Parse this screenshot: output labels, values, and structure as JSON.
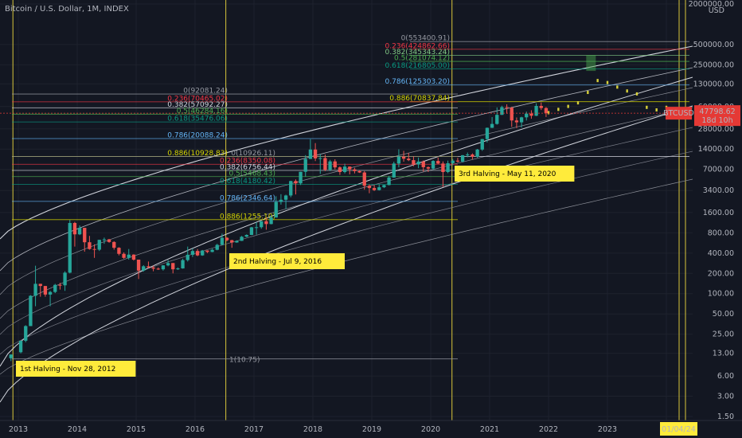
{
  "title": "Bitcoin / U.S. Dollar, 1M, INDEX",
  "currency": "USD",
  "price_tag": {
    "symbol": "BTCUSD",
    "price": "47798.62",
    "countdown": "18d 10h"
  },
  "date_tag": "01/04/24",
  "colors": {
    "bg": "#131722",
    "grid": "#1e222d",
    "up": "#26a69a",
    "down": "#ef5350",
    "halving": "#d9c63b",
    "label_bg": "#ffeb3b",
    "tag_red": "#e53935",
    "projection": "#d8d13a",
    "projection_box": "#4caf50"
  },
  "chart_data": {
    "type": "candlestick",
    "title": "Bitcoin / U.S. Dollar, 1M, INDEX",
    "y_scale": "log",
    "ylim": [
      1.5,
      2000000
    ],
    "x_ticks": [
      "2013",
      "2014",
      "2015",
      "2016",
      "2017",
      "2018",
      "2019",
      "2020",
      "2021",
      "2022",
      "2023",
      "2"
    ],
    "y_ticks": [
      "2000000.00",
      "500000.00",
      "250000.00",
      "130000.00",
      "60000.00",
      "28000.00",
      "14000.00",
      "7000.00",
      "3400.00",
      "1600.00",
      "800.00",
      "400.00",
      "200.00",
      "100.00",
      "50.00",
      "25.00",
      "13.00",
      "6.00",
      "3.00",
      "1.50"
    ],
    "halvings": [
      {
        "label": "1st Halving - Nov 28, 2012",
        "date": "2012-11-28"
      },
      {
        "label": "2nd Halving - Jul 9, 2016",
        "date": "2016-07-09"
      },
      {
        "label": "3rd Halving - May 11, 2020",
        "date": "2020-05-11"
      }
    ],
    "fib_sets": [
      {
        "levels": [
          {
            "label": "0(553400.91)",
            "value": 553400.91,
            "color": "#9598a1"
          },
          {
            "label": "0.236(424862.66)",
            "value": 424862.66,
            "color": "#f23645"
          },
          {
            "label": "0.382(345343.24)",
            "value": 345343.24,
            "color": "#81c784"
          },
          {
            "label": "0.5(281074.12)",
            "value": 281074.12,
            "color": "#4caf50"
          },
          {
            "label": "0.618(216805.00)",
            "value": 216805.0,
            "color": "#089981"
          },
          {
            "label": "0.786(125303.20)",
            "value": 125303.2,
            "color": "#64b5f6"
          },
          {
            "label": "0.886(70837.84)",
            "value": 70837.84,
            "color": "#d4d400"
          }
        ]
      },
      {
        "levels": [
          {
            "label": "0(92081.24)",
            "value": 92081.24,
            "color": "#9598a1"
          },
          {
            "label": "0.236(70465.02)",
            "value": 70465.02,
            "color": "#f23645"
          },
          {
            "label": "0.382(57092.27)",
            "value": 57092.27,
            "color": "#d1d4dc"
          },
          {
            "label": "0.5(46284.16)",
            "value": 46284.16,
            "color": "#4caf50"
          },
          {
            "label": "0.618(35476.06)",
            "value": 35476.06,
            "color": "#089981"
          },
          {
            "label": "0.786(20088.24)",
            "value": 20088.24,
            "color": "#64b5f6"
          },
          {
            "label": "0.886(10928.83)",
            "value": 10928.83,
            "color": "#d4d400"
          }
        ]
      },
      {
        "levels": [
          {
            "label": "0(10926.11)",
            "value": 10926.11,
            "color": "#9598a1"
          },
          {
            "label": "0.236(8350.08)",
            "value": 8350.08,
            "color": "#f23645"
          },
          {
            "label": "0.382(6756.44)",
            "value": 6756.44,
            "color": "#d1d4dc"
          },
          {
            "label": "0.5(5468.43)",
            "value": 5468.43,
            "color": "#4caf50"
          },
          {
            "label": "0.618(4180.42)",
            "value": 4180.42,
            "color": "#089981"
          },
          {
            "label": "0.786(2346.64)",
            "value": 2346.64,
            "color": "#64b5f6"
          },
          {
            "label": "0.886(1255.10)",
            "value": 1255.1,
            "color": "#d4d400"
          },
          {
            "label": "1(10.75)",
            "value": 10.75,
            "color": "#9598a1"
          }
        ]
      }
    ],
    "candles": [
      {
        "date": "2012-11",
        "o": 11,
        "h": 12.5,
        "l": 10,
        "c": 12.5
      },
      {
        "date": "2013-01",
        "o": 13.5,
        "h": 20,
        "l": 13,
        "c": 20
      },
      {
        "date": "2013-02",
        "o": 20,
        "h": 34,
        "l": 19,
        "c": 33
      },
      {
        "date": "2013-03",
        "o": 33,
        "h": 95,
        "l": 33,
        "c": 93
      },
      {
        "date": "2013-04",
        "o": 93,
        "h": 260,
        "l": 65,
        "c": 140
      },
      {
        "date": "2013-05",
        "o": 140,
        "h": 140,
        "l": 90,
        "c": 130
      },
      {
        "date": "2013-06",
        "o": 130,
        "h": 130,
        "l": 90,
        "c": 97
      },
      {
        "date": "2013-07",
        "o": 97,
        "h": 110,
        "l": 65,
        "c": 106
      },
      {
        "date": "2013-08",
        "o": 106,
        "h": 140,
        "l": 102,
        "c": 135
      },
      {
        "date": "2013-09",
        "o": 135,
        "h": 145,
        "l": 115,
        "c": 133
      },
      {
        "date": "2013-10",
        "o": 133,
        "h": 215,
        "l": 110,
        "c": 205
      },
      {
        "date": "2013-11",
        "o": 205,
        "h": 1240,
        "l": 200,
        "c": 1120
      },
      {
        "date": "2013-12",
        "o": 1120,
        "h": 1165,
        "l": 500,
        "c": 760
      },
      {
        "date": "2014-01",
        "o": 760,
        "h": 1030,
        "l": 740,
        "c": 950
      },
      {
        "date": "2014-02",
        "o": 950,
        "h": 950,
        "l": 420,
        "c": 580
      },
      {
        "date": "2014-03",
        "o": 580,
        "h": 720,
        "l": 450,
        "c": 460
      },
      {
        "date": "2014-04",
        "o": 460,
        "h": 540,
        "l": 340,
        "c": 450
      },
      {
        "date": "2014-05",
        "o": 450,
        "h": 630,
        "l": 430,
        "c": 630
      },
      {
        "date": "2014-06",
        "o": 630,
        "h": 680,
        "l": 550,
        "c": 640
      },
      {
        "date": "2014-07",
        "o": 640,
        "h": 650,
        "l": 570,
        "c": 585
      },
      {
        "date": "2014-08",
        "o": 585,
        "h": 600,
        "l": 450,
        "c": 480
      },
      {
        "date": "2014-09",
        "o": 480,
        "h": 490,
        "l": 370,
        "c": 390
      },
      {
        "date": "2014-10",
        "o": 390,
        "h": 410,
        "l": 330,
        "c": 340
      },
      {
        "date": "2014-11",
        "o": 340,
        "h": 460,
        "l": 320,
        "c": 380
      },
      {
        "date": "2014-12",
        "o": 380,
        "h": 385,
        "l": 310,
        "c": 320
      },
      {
        "date": "2015-01",
        "o": 320,
        "h": 320,
        "l": 165,
        "c": 220
      },
      {
        "date": "2015-02",
        "o": 220,
        "h": 265,
        "l": 212,
        "c": 255
      },
      {
        "date": "2015-03",
        "o": 255,
        "h": 300,
        "l": 240,
        "c": 245
      },
      {
        "date": "2015-04",
        "o": 245,
        "h": 260,
        "l": 215,
        "c": 235
      },
      {
        "date": "2015-05",
        "o": 235,
        "h": 245,
        "l": 225,
        "c": 230
      },
      {
        "date": "2015-06",
        "o": 230,
        "h": 265,
        "l": 220,
        "c": 263
      },
      {
        "date": "2015-07",
        "o": 263,
        "h": 315,
        "l": 255,
        "c": 285
      },
      {
        "date": "2015-08",
        "o": 285,
        "h": 285,
        "l": 200,
        "c": 230
      },
      {
        "date": "2015-09",
        "o": 230,
        "h": 245,
        "l": 225,
        "c": 237
      },
      {
        "date": "2015-10",
        "o": 237,
        "h": 330,
        "l": 235,
        "c": 315
      },
      {
        "date": "2015-11",
        "o": 315,
        "h": 500,
        "l": 300,
        "c": 378
      },
      {
        "date": "2015-12",
        "o": 378,
        "h": 470,
        "l": 350,
        "c": 430
      },
      {
        "date": "2016-01",
        "o": 430,
        "h": 460,
        "l": 360,
        "c": 370
      },
      {
        "date": "2016-02",
        "o": 370,
        "h": 445,
        "l": 365,
        "c": 437
      },
      {
        "date": "2016-03",
        "o": 437,
        "h": 440,
        "l": 400,
        "c": 416
      },
      {
        "date": "2016-04",
        "o": 416,
        "h": 465,
        "l": 412,
        "c": 448
      },
      {
        "date": "2016-05",
        "o": 448,
        "h": 550,
        "l": 440,
        "c": 530
      },
      {
        "date": "2016-06",
        "o": 530,
        "h": 780,
        "l": 525,
        "c": 675
      },
      {
        "date": "2016-07",
        "o": 675,
        "h": 690,
        "l": 600,
        "c": 622
      },
      {
        "date": "2016-08",
        "o": 622,
        "h": 630,
        "l": 480,
        "c": 575
      },
      {
        "date": "2016-09",
        "o": 575,
        "h": 620,
        "l": 570,
        "c": 608
      },
      {
        "date": "2016-10",
        "o": 608,
        "h": 720,
        "l": 605,
        "c": 700
      },
      {
        "date": "2016-11",
        "o": 700,
        "h": 760,
        "l": 690,
        "c": 745
      },
      {
        "date": "2016-12",
        "o": 745,
        "h": 980,
        "l": 740,
        "c": 965
      },
      {
        "date": "2017-01",
        "o": 965,
        "h": 1150,
        "l": 750,
        "c": 970
      },
      {
        "date": "2017-02",
        "o": 970,
        "h": 1200,
        "l": 920,
        "c": 1190
      },
      {
        "date": "2017-03",
        "o": 1190,
        "h": 1350,
        "l": 890,
        "c": 1080
      },
      {
        "date": "2017-04",
        "o": 1080,
        "h": 1450,
        "l": 1070,
        "c": 1350
      },
      {
        "date": "2017-05",
        "o": 1350,
        "h": 2800,
        "l": 1350,
        "c": 2300
      },
      {
        "date": "2017-06",
        "o": 2300,
        "h": 3000,
        "l": 2100,
        "c": 2480
      },
      {
        "date": "2017-07",
        "o": 2480,
        "h": 2950,
        "l": 1800,
        "c": 2870
      },
      {
        "date": "2017-08",
        "o": 2870,
        "h": 4750,
        "l": 2700,
        "c": 4700
      },
      {
        "date": "2017-09",
        "o": 4700,
        "h": 4970,
        "l": 2970,
        "c": 4340
      },
      {
        "date": "2017-10",
        "o": 4340,
        "h": 6450,
        "l": 4100,
        "c": 6450
      },
      {
        "date": "2017-11",
        "o": 6450,
        "h": 11400,
        "l": 5500,
        "c": 10000
      },
      {
        "date": "2017-12",
        "o": 10000,
        "h": 19700,
        "l": 10000,
        "c": 13800
      },
      {
        "date": "2018-01",
        "o": 13800,
        "h": 17200,
        "l": 9300,
        "c": 10200
      },
      {
        "date": "2018-02",
        "o": 10200,
        "h": 11800,
        "l": 6000,
        "c": 10300
      },
      {
        "date": "2018-03",
        "o": 10300,
        "h": 11600,
        "l": 6600,
        "c": 6900
      },
      {
        "date": "2018-04",
        "o": 6900,
        "h": 9700,
        "l": 6600,
        "c": 9200
      },
      {
        "date": "2018-05",
        "o": 9200,
        "h": 9900,
        "l": 7000,
        "c": 7500
      },
      {
        "date": "2018-06",
        "o": 7500,
        "h": 7750,
        "l": 5800,
        "c": 6400
      },
      {
        "date": "2018-07",
        "o": 6400,
        "h": 8500,
        "l": 6100,
        "c": 7700
      },
      {
        "date": "2018-08",
        "o": 7700,
        "h": 7750,
        "l": 5900,
        "c": 7000
      },
      {
        "date": "2018-09",
        "o": 7000,
        "h": 7400,
        "l": 6100,
        "c": 6600
      },
      {
        "date": "2018-10",
        "o": 6600,
        "h": 6800,
        "l": 6200,
        "c": 6300
      },
      {
        "date": "2018-11",
        "o": 6300,
        "h": 6600,
        "l": 3500,
        "c": 4000
      },
      {
        "date": "2018-12",
        "o": 4000,
        "h": 4200,
        "l": 3100,
        "c": 3700
      },
      {
        "date": "2019-01",
        "o": 3700,
        "h": 4100,
        "l": 3350,
        "c": 3450
      },
      {
        "date": "2019-02",
        "o": 3450,
        "h": 4200,
        "l": 3400,
        "c": 3800
      },
      {
        "date": "2019-03",
        "o": 3800,
        "h": 4150,
        "l": 3700,
        "c": 4100
      },
      {
        "date": "2019-04",
        "o": 4100,
        "h": 5600,
        "l": 4050,
        "c": 5300
      },
      {
        "date": "2019-05",
        "o": 5300,
        "h": 9100,
        "l": 5250,
        "c": 8550
      },
      {
        "date": "2019-06",
        "o": 8550,
        "h": 13900,
        "l": 7500,
        "c": 10800
      },
      {
        "date": "2019-07",
        "o": 10800,
        "h": 13200,
        "l": 9100,
        "c": 10100
      },
      {
        "date": "2019-08",
        "o": 10100,
        "h": 12300,
        "l": 9300,
        "c": 9600
      },
      {
        "date": "2019-09",
        "o": 9600,
        "h": 10900,
        "l": 7800,
        "c": 8300
      },
      {
        "date": "2019-10",
        "o": 8300,
        "h": 10500,
        "l": 7300,
        "c": 9150
      },
      {
        "date": "2019-11",
        "o": 9150,
        "h": 9500,
        "l": 6500,
        "c": 7550
      },
      {
        "date": "2019-12",
        "o": 7550,
        "h": 7750,
        "l": 6400,
        "c": 7200
      },
      {
        "date": "2020-01",
        "o": 7200,
        "h": 9600,
        "l": 6900,
        "c": 9350
      },
      {
        "date": "2020-02",
        "o": 9350,
        "h": 10500,
        "l": 8400,
        "c": 8550
      },
      {
        "date": "2020-03",
        "o": 8550,
        "h": 9200,
        "l": 3850,
        "c": 6400
      },
      {
        "date": "2020-04",
        "o": 6400,
        "h": 9450,
        "l": 6150,
        "c": 8650
      },
      {
        "date": "2020-05",
        "o": 8650,
        "h": 10000,
        "l": 8100,
        "c": 9450
      },
      {
        "date": "2020-06",
        "o": 9450,
        "h": 10400,
        "l": 8900,
        "c": 9150
      },
      {
        "date": "2020-07",
        "o": 9150,
        "h": 11450,
        "l": 8900,
        "c": 11350
      },
      {
        "date": "2020-08",
        "o": 11350,
        "h": 12450,
        "l": 10600,
        "c": 11650
      },
      {
        "date": "2020-09",
        "o": 11650,
        "h": 12100,
        "l": 9900,
        "c": 10800
      },
      {
        "date": "2020-10",
        "o": 10800,
        "h": 14100,
        "l": 10400,
        "c": 13800
      },
      {
        "date": "2020-11",
        "o": 13800,
        "h": 19900,
        "l": 13200,
        "c": 19700
      },
      {
        "date": "2020-12",
        "o": 19700,
        "h": 29300,
        "l": 17600,
        "c": 29000
      },
      {
        "date": "2021-01",
        "o": 29000,
        "h": 41900,
        "l": 28800,
        "c": 33100
      },
      {
        "date": "2021-02",
        "o": 33100,
        "h": 58300,
        "l": 32300,
        "c": 45200
      },
      {
        "date": "2021-03",
        "o": 45200,
        "h": 61700,
        "l": 45000,
        "c": 58800
      },
      {
        "date": "2021-04",
        "o": 58800,
        "h": 64800,
        "l": 47000,
        "c": 57700
      },
      {
        "date": "2021-05",
        "o": 57700,
        "h": 59500,
        "l": 30000,
        "c": 37300
      },
      {
        "date": "2021-06",
        "o": 37300,
        "h": 41300,
        "l": 28800,
        "c": 35000
      },
      {
        "date": "2021-07",
        "o": 35000,
        "h": 42300,
        "l": 29300,
        "c": 41500
      },
      {
        "date": "2021-08",
        "o": 41500,
        "h": 50500,
        "l": 37300,
        "c": 47100
      },
      {
        "date": "2021-09",
        "o": 47100,
        "h": 52900,
        "l": 39600,
        "c": 43800
      },
      {
        "date": "2021-10",
        "o": 43800,
        "h": 67000,
        "l": 43300,
        "c": 61300
      },
      {
        "date": "2021-11",
        "o": 61300,
        "h": 69000,
        "l": 53300,
        "c": 57000
      },
      {
        "date": "2021-12",
        "o": 57000,
        "h": 59000,
        "l": 42000,
        "c": 47798.62
      }
    ],
    "projection": [
      {
        "date": "2022-01",
        "v": 50000
      },
      {
        "date": "2022-03",
        "v": 56000
      },
      {
        "date": "2022-05",
        "v": 62000
      },
      {
        "date": "2022-07",
        "v": 70000
      },
      {
        "date": "2022-09",
        "v": 100000
      },
      {
        "date": "2022-11",
        "v": 150000
      },
      {
        "date": "2023-01",
        "v": 140000
      },
      {
        "date": "2023-03",
        "v": 120000
      },
      {
        "date": "2023-05",
        "v": 105000
      },
      {
        "date": "2023-07",
        "v": 95000
      },
      {
        "date": "2023-09",
        "v": 60000
      },
      {
        "date": "2023-11",
        "v": 55000
      },
      {
        "date": "2024-01",
        "v": 60000
      }
    ]
  }
}
